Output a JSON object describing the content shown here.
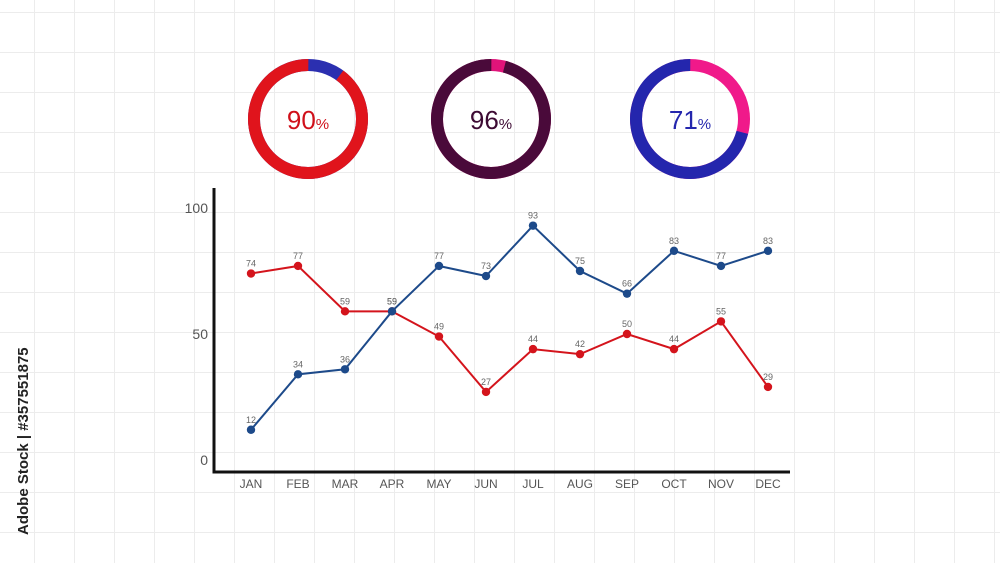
{
  "gauges": [
    {
      "label": "90",
      "unit": "%",
      "value": 90,
      "color": "#e0141c",
      "remainder_color": "#2b2fb0",
      "text_color": "#d0101a"
    },
    {
      "label": "96",
      "unit": "%",
      "value": 96,
      "color": "#4a0a3a",
      "remainder_color": "#e0147a",
      "text_color": "#3d0a33"
    },
    {
      "label": "71",
      "unit": "%",
      "value": 71,
      "color": "#2426ad",
      "remainder_color": "#f0198a",
      "text_color": "#2426ad"
    }
  ],
  "chart_data": {
    "type": "line",
    "categories": [
      "JAN",
      "FEB",
      "MAR",
      "APR",
      "MAY",
      "JUN",
      "JUL",
      "AUG",
      "SEP",
      "OCT",
      "NOV",
      "DEC"
    ],
    "ylim": [
      0,
      100
    ],
    "yticks": [
      "100",
      "50",
      "0"
    ],
    "grid": false,
    "series": [
      {
        "values": [
          74,
          77,
          59,
          59,
          49,
          27,
          44,
          42,
          50,
          44,
          55,
          29
        ],
        "color": "#d4141c",
        "labels": [
          "74",
          "77",
          "59",
          "59",
          "49",
          "27",
          "44",
          "42",
          "50",
          "44",
          "55",
          "29"
        ]
      },
      {
        "values": [
          12,
          34,
          36,
          59,
          77,
          73,
          93,
          75,
          66,
          83,
          77,
          83
        ],
        "color": "#1d4a8a",
        "labels": [
          "12",
          "34",
          "36",
          "59",
          "77",
          "73",
          "93",
          "75",
          "66",
          "83",
          "77",
          "83"
        ]
      }
    ]
  },
  "watermark": {
    "text": "Adobe Stock | #357551875"
  }
}
